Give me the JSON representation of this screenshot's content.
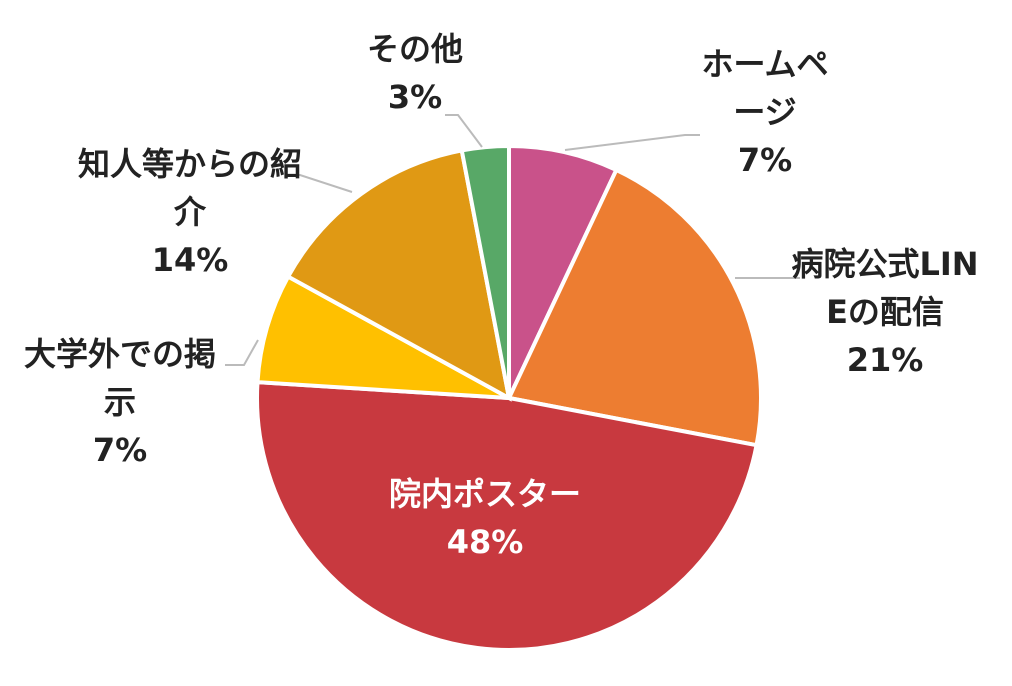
{
  "chart_data": {
    "type": "pie",
    "categories": [
      "ホームページ",
      "病院公式LINEの配信",
      "院内ポスター",
      "大学外での掲示",
      "知人等からの紹介",
      "その他"
    ],
    "values": [
      7,
      21,
      48,
      7,
      14,
      3
    ],
    "value_labels": [
      "7%",
      "21%",
      "48%",
      "7%",
      "14%",
      "3%"
    ],
    "colors": [
      "#c9528a",
      "#ed7d31",
      "#c8393f",
      "#ffc000",
      "#e09914",
      "#58a867"
    ]
  }
}
